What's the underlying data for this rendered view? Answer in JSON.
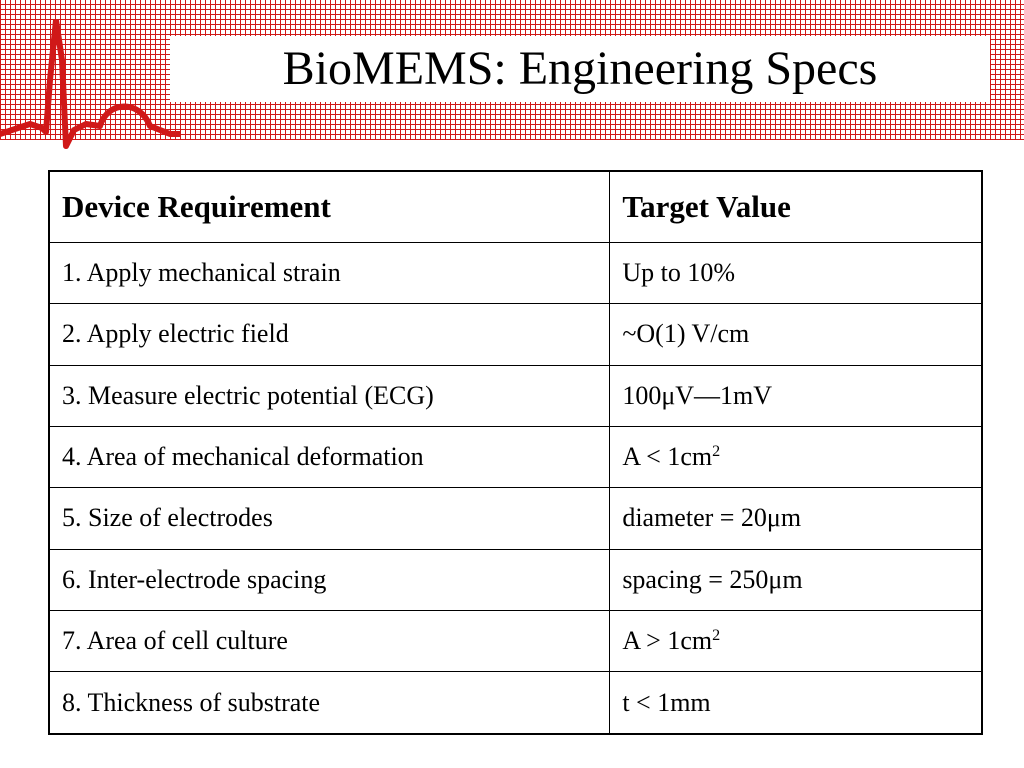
{
  "slide": {
    "title": "BioMEMS: Engineering Specs"
  },
  "table": {
    "headers": [
      "Device Requirement",
      "Target Value"
    ],
    "rows": [
      {
        "requirement": "1. Apply mechanical strain",
        "value": "Up to 10%",
        "value_sup": ""
      },
      {
        "requirement": "2. Apply electric field",
        "value": "~O(1) V/cm",
        "value_sup": ""
      },
      {
        "requirement": "3. Measure electric potential (ECG)",
        "value": "100μV—1mV",
        "value_sup": ""
      },
      {
        "requirement": "4. Area of mechanical deformation",
        "value": "A < 1cm",
        "value_sup": "2"
      },
      {
        "requirement": "5. Size of electrodes",
        "value": "diameter = 20μm",
        "value_sup": ""
      },
      {
        "requirement": "6. Inter-electrode spacing",
        "value": "spacing = 250μm",
        "value_sup": ""
      },
      {
        "requirement": "7. Area of cell culture",
        "value": "A > 1cm",
        "value_sup": "2"
      },
      {
        "requirement": "8. Thickness of substrate",
        "value": "t < 1mm",
        "value_sup": ""
      }
    ]
  },
  "colors": {
    "grid_red": "#d01818",
    "text": "#000000",
    "background": "#ffffff"
  },
  "decoration": {
    "header_icon": "ecg-waveform-icon"
  }
}
